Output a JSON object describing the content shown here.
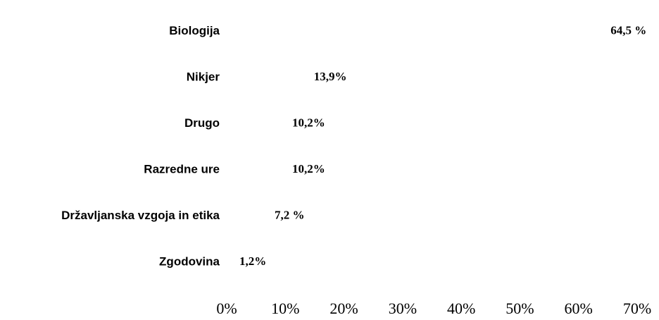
{
  "chart_data": {
    "type": "barh",
    "categories": [
      "Biologija",
      "Nikjer",
      "Drugo",
      "Razredne ure",
      "Državljanska vzgoja in etika",
      "Zgodovina"
    ],
    "values": [
      64.5,
      13.9,
      10.2,
      10.2,
      7.2,
      1.2
    ],
    "value_labels": [
      "64,5 %",
      "13,9%",
      "10,2%",
      "10,2%",
      "7,2 %",
      "1,2%"
    ],
    "color": "#ffffff",
    "xlim": [
      0,
      70
    ],
    "xticks": [
      {
        "value": 0,
        "label": "0%"
      },
      {
        "value": 10,
        "label": "10%"
      },
      {
        "value": 20,
        "label": "20%"
      },
      {
        "value": 30,
        "label": "30%"
      },
      {
        "value": 40,
        "label": "40%"
      },
      {
        "value": 50,
        "label": "50%"
      },
      {
        "value": 60,
        "label": "60%"
      },
      {
        "value": 70,
        "label": "70%"
      }
    ],
    "grid": false
  }
}
